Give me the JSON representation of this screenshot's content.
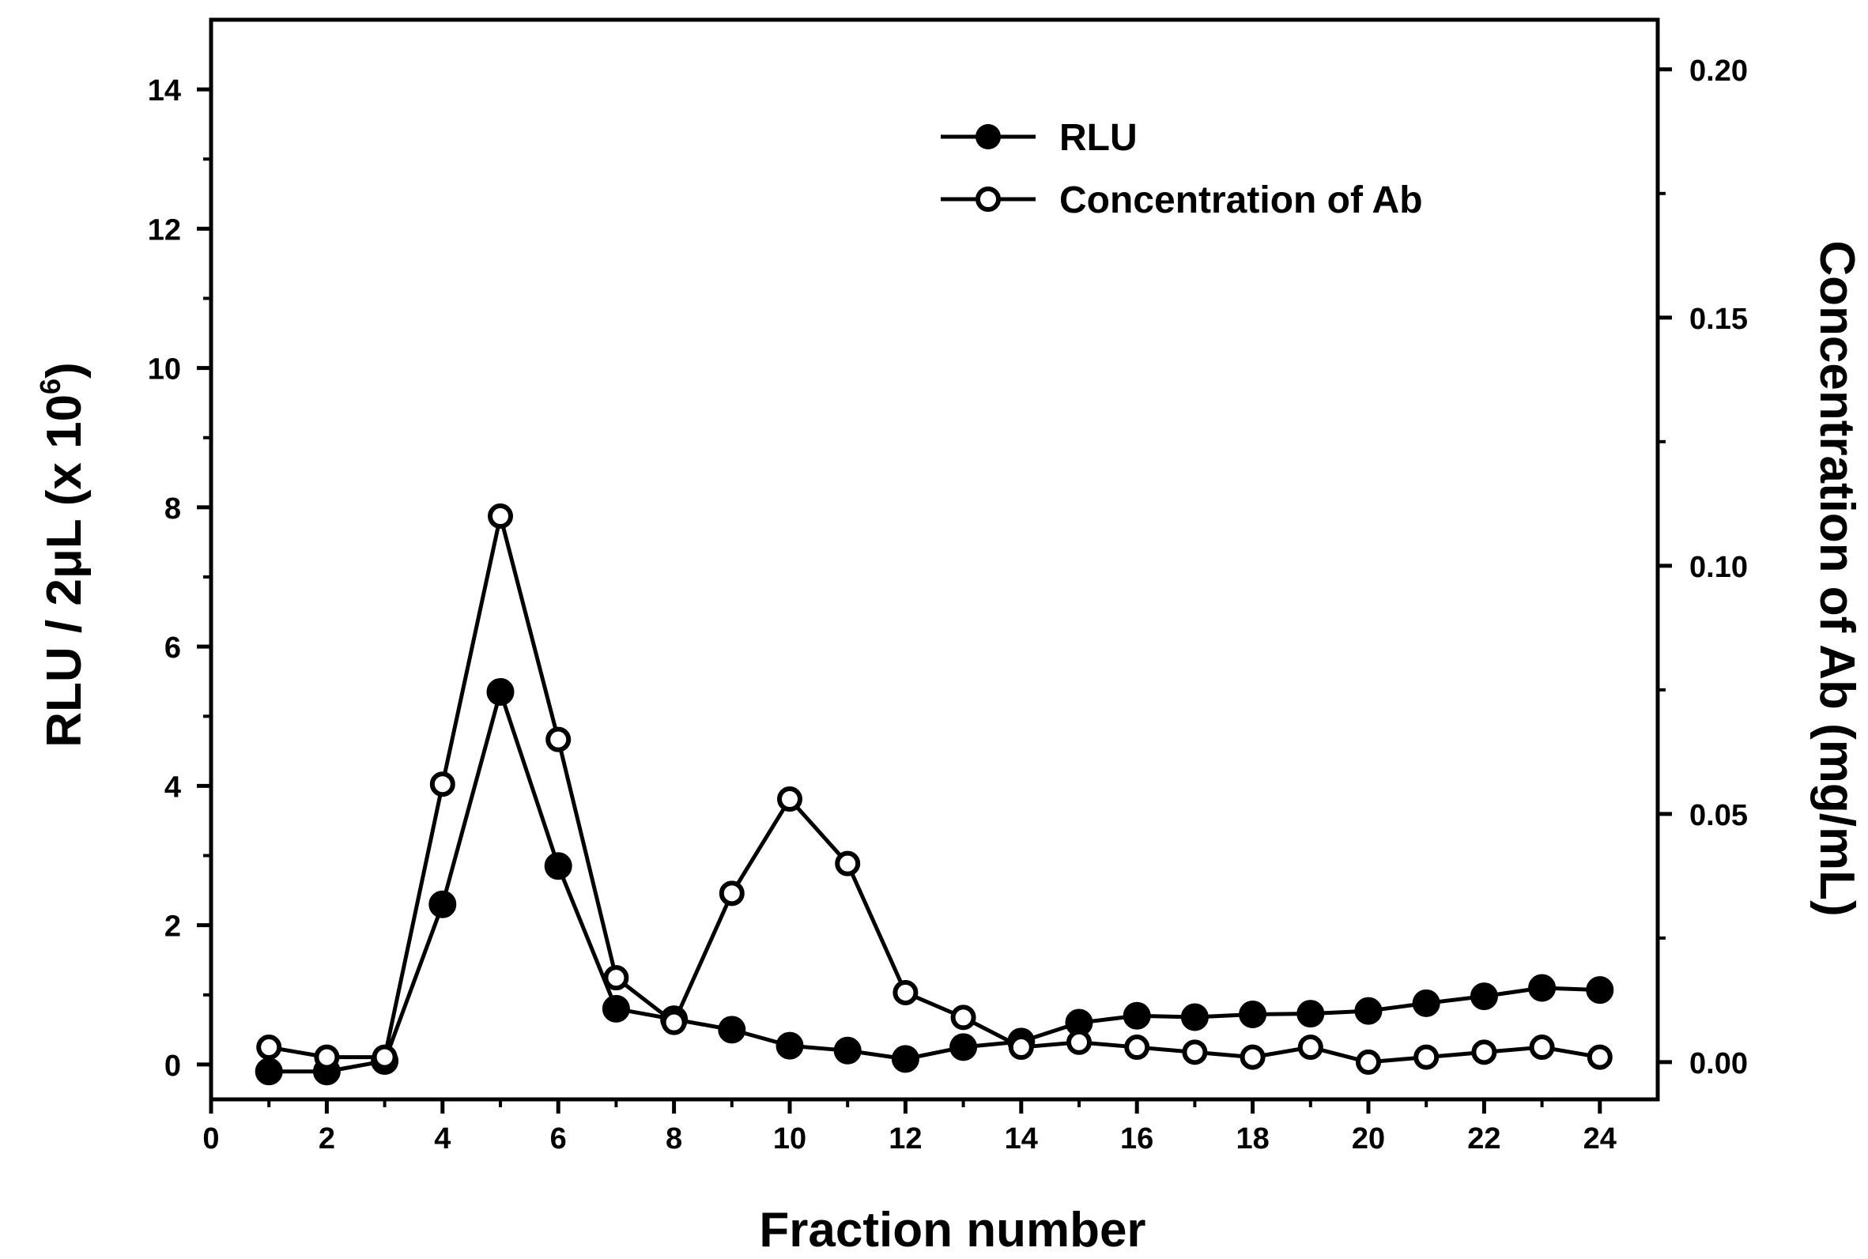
{
  "chart_data": {
    "type": "line",
    "xlabel": "Fraction number",
    "ylabel": {
      "text": "RLU / 2μL  (x 10",
      "exponent": "6",
      "close": ")"
    },
    "y2label": "Concentration of Ab (mg/mL)",
    "xlim": [
      0,
      25
    ],
    "ylim": [
      -0.5,
      15
    ],
    "y2lim": [
      -0.0075,
      0.21
    ],
    "x_ticks": [
      "0",
      "2",
      "4",
      "6",
      "8",
      "10",
      "12",
      "14",
      "16",
      "18",
      "20",
      "22",
      "24"
    ],
    "y_ticks": [
      "0",
      "2",
      "4",
      "6",
      "8",
      "10",
      "12",
      "14"
    ],
    "y2_ticks": [
      "0.00",
      "0.05",
      "0.10",
      "0.15",
      "0.20"
    ],
    "grid": false,
    "legend_position": "top-right",
    "series": [
      {
        "name": "RLU",
        "axis": "left",
        "marker": "filled-circle",
        "color": "#000000",
        "x": [
          1,
          2,
          3,
          4,
          5,
          6,
          7,
          8,
          9,
          10,
          11,
          12,
          13,
          14,
          15,
          16,
          17,
          18,
          19,
          20,
          21,
          22,
          23,
          24
        ],
        "values": [
          -0.1,
          -0.1,
          0.05,
          2.3,
          5.35,
          2.85,
          0.8,
          0.65,
          0.5,
          0.27,
          0.2,
          0.08,
          0.25,
          0.33,
          0.6,
          0.7,
          0.68,
          0.72,
          0.73,
          0.77,
          0.88,
          0.98,
          1.1,
          1.07
        ]
      },
      {
        "name": "Concentration of Ab",
        "axis": "right",
        "marker": "open-circle",
        "color": "#000000",
        "x": [
          1,
          2,
          3,
          4,
          5,
          6,
          7,
          8,
          9,
          10,
          11,
          12,
          13,
          14,
          15,
          16,
          17,
          18,
          19,
          20,
          21,
          22,
          23,
          24
        ],
        "values": [
          0.003,
          0.001,
          0.001,
          0.056,
          0.11,
          0.065,
          0.017,
          0.008,
          0.034,
          0.053,
          0.04,
          0.014,
          0.009,
          0.003,
          0.004,
          0.003,
          0.002,
          0.001,
          0.003,
          0.0,
          0.001,
          0.002,
          0.003,
          0.001
        ]
      }
    ]
  }
}
